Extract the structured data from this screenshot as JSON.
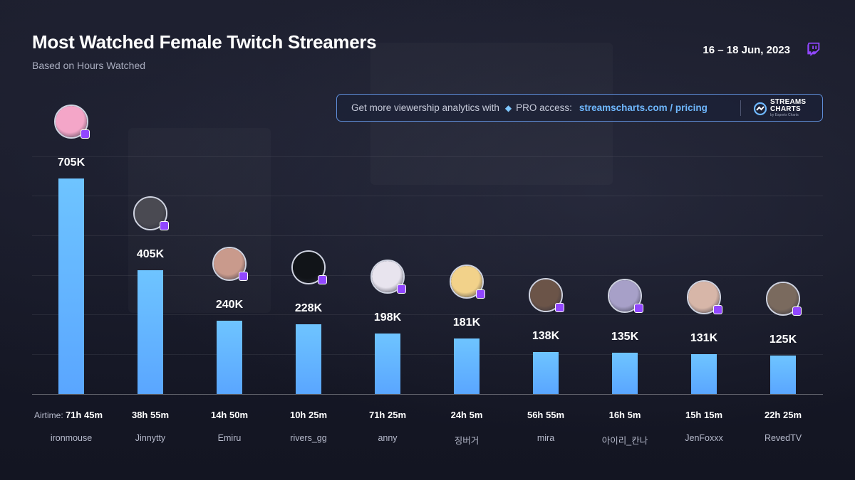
{
  "header": {
    "title": "Most Watched Female Twitch Streamers",
    "subtitle": "Based on Hours Watched",
    "date_range": "16 – 18 Jun, 2023"
  },
  "promo": {
    "text": "Get more viewership analytics with",
    "gem_icon": "diamond-icon",
    "text2": "PRO access:",
    "link": "streamscharts.com / pricing",
    "logo_line1": "STREAMS",
    "logo_line2": "CHARTS",
    "logo_by": "by Esports Charts"
  },
  "colors": {
    "bar": "#6ec4ff",
    "accent": "#9147ff",
    "link": "#6fb8ff"
  },
  "airtime_label": "Airtime:",
  "chart_data": {
    "type": "bar",
    "categories": [
      "ironmouse",
      "Jinnytty",
      "Emiru",
      "rivers_gg",
      "anny",
      "징버거",
      "mira",
      "아이리_칸나",
      "JenFoxxx",
      "RevedTV"
    ],
    "series": [
      {
        "values": [
          705,
          405,
          240,
          228,
          198,
          181,
          138,
          135,
          131,
          125
        ]
      }
    ],
    "value_labels": [
      "705K",
      "405K",
      "240K",
      "228K",
      "198K",
      "181K",
      "138K",
      "135K",
      "131K",
      "125K"
    ],
    "airtime": [
      "71h 45m",
      "38h 55m",
      "14h 50m",
      "10h 25m",
      "71h 25m",
      "24h 5m",
      "56h 55m",
      "16h 5m",
      "15h 15m",
      "22h 25m"
    ],
    "ylim": [
      0,
      800
    ],
    "grid": true,
    "avatar_colors": [
      "#f4a6c8",
      "#4a4a52",
      "#c99a8c",
      "#111418",
      "#e8e4ee",
      "#f2d28a",
      "#6b5448",
      "#a7a0c8",
      "#d7b6a8",
      "#7a6a5e"
    ]
  }
}
